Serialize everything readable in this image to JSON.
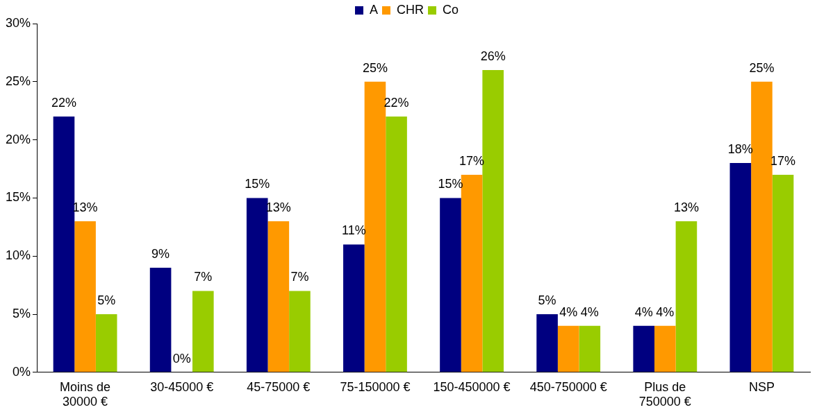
{
  "chart_data": {
    "type": "bar",
    "categories": [
      "Moins de 30000 €",
      "30-45000 €",
      "45-75000 €",
      "75-150000 €",
      "150-450000 €",
      "450-750000 €",
      "Plus de 750000 €",
      "NSP"
    ],
    "series": [
      {
        "name": "A",
        "color": "#000080",
        "values": [
          22,
          9,
          15,
          11,
          15,
          5,
          4,
          18
        ],
        "value_labels": [
          "22%",
          "9%",
          "15%",
          "11%",
          "15%",
          "5%",
          "4%",
          "18%"
        ]
      },
      {
        "name": "CHR",
        "color": "#ff9900",
        "values": [
          13,
          0,
          13,
          25,
          17,
          4,
          4,
          25
        ],
        "value_labels": [
          "13%",
          "0%",
          "13%",
          "25%",
          "17%",
          "4%",
          "4%",
          "25%"
        ]
      },
      {
        "name": "Co",
        "color": "#99cc00",
        "values": [
          5,
          7,
          7,
          22,
          26,
          4,
          13,
          17
        ],
        "value_labels": [
          "5%",
          "7%",
          "7%",
          "22%",
          "26%",
          "4%",
          "13%",
          "17%"
        ]
      }
    ],
    "ylim": [
      0,
      30
    ],
    "yticks": [
      {
        "value": 0,
        "label": "0%"
      },
      {
        "value": 5,
        "label": "5%"
      },
      {
        "value": 10,
        "label": "10%"
      },
      {
        "value": 15,
        "label": "15%"
      },
      {
        "value": 20,
        "label": "20%"
      },
      {
        "value": 25,
        "label": "25%"
      },
      {
        "value": 30,
        "label": "30%"
      }
    ],
    "legend": "top",
    "grid": false
  }
}
